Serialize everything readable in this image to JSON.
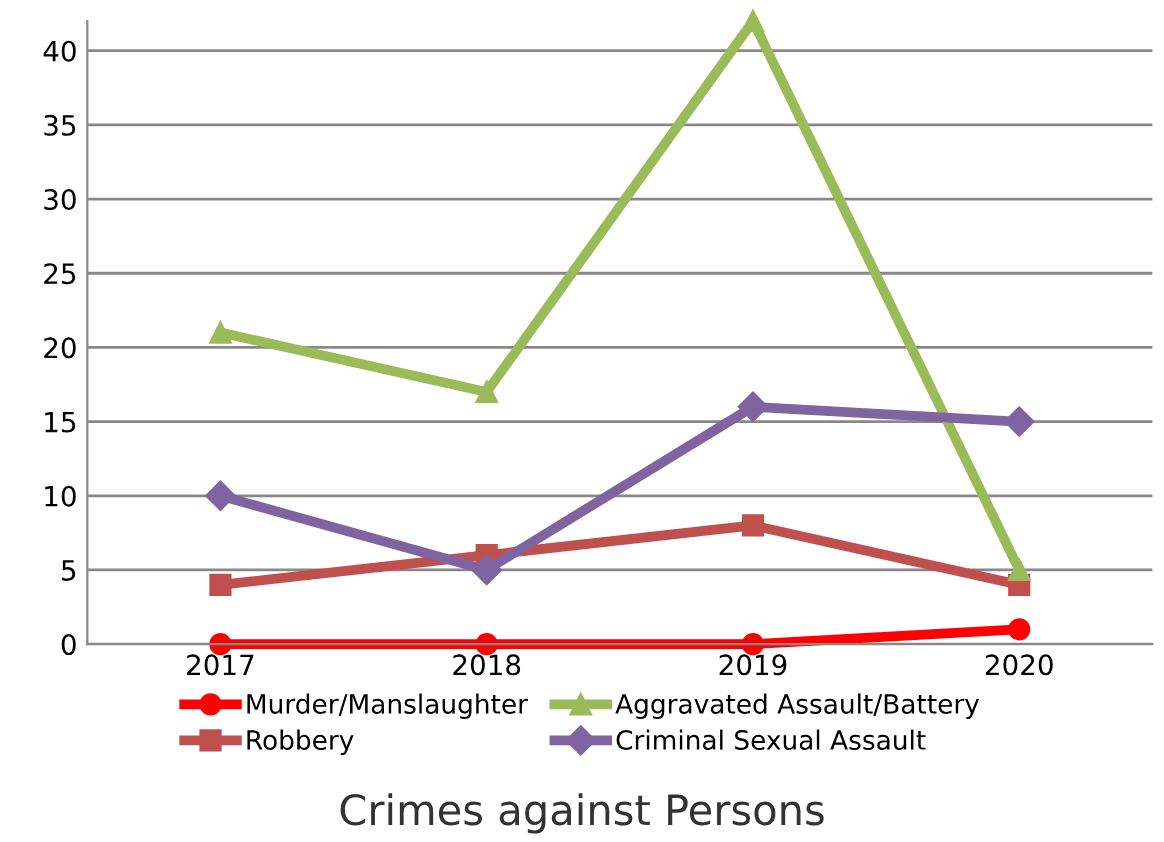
{
  "chart_data": {
    "type": "line",
    "title": "Crimes against Persons",
    "categories": [
      "2017",
      "2018",
      "2019",
      "2020"
    ],
    "series": [
      {
        "name": "Murder/Manslaughter",
        "color": "#ff0000",
        "marker": "circle",
        "values": [
          0,
          0,
          0,
          1
        ]
      },
      {
        "name": "Robbery",
        "color": "#c0504d",
        "marker": "square",
        "values": [
          4,
          6,
          8,
          4
        ]
      },
      {
        "name": "Aggravated Assault/Battery",
        "color": "#9bbb59",
        "marker": "triangle",
        "values": [
          21,
          17,
          42,
          5
        ]
      },
      {
        "name": "Criminal Sexual Assault",
        "color": "#8064a2",
        "marker": "diamond",
        "values": [
          10,
          5,
          16,
          15
        ]
      }
    ],
    "ylim": [
      0,
      42
    ],
    "yticks": [
      0,
      5,
      10,
      15,
      20,
      25,
      30,
      35,
      40
    ],
    "grid": "y",
    "legend": "bottom",
    "line_style": "solid"
  }
}
